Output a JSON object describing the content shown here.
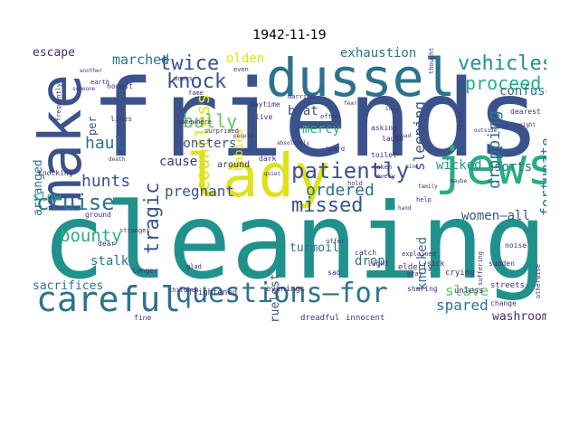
{
  "title": "1942-11-19",
  "palette": {
    "dark_purple": "#472d7b",
    "blue": "#3b528b",
    "slate": "#2c728e",
    "teal": "#21918c",
    "green_teal": "#28ae80",
    "green": "#5ec962",
    "yellow_green": "#addc30",
    "yellow": "#dde318"
  },
  "words": [
    {
      "text": "friends",
      "color": "#3b528b"
    },
    {
      "text": "cleaning",
      "color": "#21918c"
    },
    {
      "text": "lady",
      "color": "#dde318"
    },
    {
      "text": "make",
      "color": "#3b528b"
    },
    {
      "text": "dussel",
      "color": "#2c728e"
    },
    {
      "text": "jews",
      "color": "#28ae80"
    },
    {
      "text": "careful",
      "color": "#2c728e"
    },
    {
      "text": "questions—for",
      "color": "#2c728e"
    },
    {
      "text": "cruise",
      "color": "#2c728e"
    },
    {
      "text": "missed",
      "color": "#3b528b"
    },
    {
      "text": "patiently",
      "color": "#3b528b"
    },
    {
      "text": "knock",
      "color": "#3b528b"
    },
    {
      "text": "twice",
      "color": "#3b528b"
    },
    {
      "text": "vehicles",
      "color": "#21918c"
    },
    {
      "text": "proceed",
      "color": "#28ae80"
    },
    {
      "text": "countless",
      "color": "#dde318"
    },
    {
      "text": "bully",
      "color": "#5ec962"
    },
    {
      "text": "haul",
      "color": "#2c728e"
    },
    {
      "text": "hunts",
      "color": "#3b528b"
    },
    {
      "text": "bounty",
      "color": "#28ae80"
    },
    {
      "text": "tragic",
      "color": "#3b528b"
    },
    {
      "text": "pregnant",
      "color": "#3b528b"
    },
    {
      "text": "ordered",
      "color": "#2c728e"
    },
    {
      "text": "marched",
      "color": "#2c728e"
    },
    {
      "text": "escape",
      "color": "#472d7b"
    },
    {
      "text": "exhaustion",
      "color": "#2c728e"
    },
    {
      "text": "confused",
      "color": "#2c728e"
    },
    {
      "text": "fortunate",
      "color": "#2c728e"
    },
    {
      "text": "dropping",
      "color": "#2c728e"
    },
    {
      "text": "sleeping",
      "color": "#3b528b"
    },
    {
      "text": "wicked",
      "color": "#21918c"
    },
    {
      "text": "sorts",
      "color": "#2c728e"
    },
    {
      "text": "women—all",
      "color": "#3b528b"
    },
    {
      "text": "slave",
      "color": "#5ec962"
    },
    {
      "text": "spared",
      "color": "#2c728e"
    },
    {
      "text": "washroom",
      "color": "#472d7b"
    },
    {
      "text": "sacrifices",
      "color": "#2c728e"
    },
    {
      "text": "stalk",
      "color": "#2c728e"
    },
    {
      "text": "arranged",
      "color": "#2c728e"
    },
    {
      "text": "slow",
      "color": "#28ae80"
    },
    {
      "text": "monsters",
      "color": "#3b528b"
    },
    {
      "text": "cause",
      "color": "#472d7b"
    },
    {
      "text": "beat",
      "color": "#3b528b"
    },
    {
      "text": "mercy",
      "color": "#28ae80"
    },
    {
      "text": "cruelest",
      "color": "#3b528b"
    },
    {
      "text": "turmoil",
      "color": "#2c728e"
    },
    {
      "text": "drop",
      "color": "#2c728e"
    },
    {
      "text": "knocked",
      "color": "#2c728e"
    },
    {
      "text": "olden",
      "color": "#dde318"
    },
    {
      "text": "babies",
      "color": "#dde318"
    },
    {
      "text": "per",
      "color": "#3b528b"
    },
    {
      "text": "around",
      "color": "#472d7b"
    },
    {
      "text": "dreadful",
      "color": "#472d7b"
    },
    {
      "text": "innocent",
      "color": "#472d7b"
    },
    {
      "text": "military",
      "color": "#472d7b"
    },
    {
      "text": "walking",
      "color": "#472d7b"
    },
    {
      "text": "acquaintances",
      "color": "#472d7b"
    },
    {
      "text": "delighted",
      "color": "#472d7b"
    },
    {
      "text": "clutches",
      "color": "#472d7b"
    },
    {
      "text": "evenings",
      "color": "#472d7b"
    },
    {
      "text": "frightened",
      "color": "#472d7b"
    },
    {
      "text": "elderly",
      "color": "#472d7b"
    },
    {
      "text": "crying",
      "color": "#472d7b"
    },
    {
      "text": "streets",
      "color": "#472d7b"
    },
    {
      "text": "unless",
      "color": "#472d7b"
    },
    {
      "text": "change",
      "color": "#472d7b"
    },
    {
      "text": "sudden",
      "color": "#472d7b"
    },
    {
      "text": "noise",
      "color": "#472d7b"
    },
    {
      "text": "dearest",
      "color": "#472d7b"
    },
    {
      "text": "daytime",
      "color": "#472d7b"
    },
    {
      "text": "married",
      "color": "#472d7b"
    },
    {
      "text": "asking",
      "color": "#472d7b"
    },
    {
      "text": "often",
      "color": "#472d7b"
    },
    {
      "text": "heard",
      "color": "#472d7b"
    },
    {
      "text": "toilet",
      "color": "#472d7b"
    },
    {
      "text": "laugh",
      "color": "#472d7b"
    },
    {
      "text": "light",
      "color": "#472d7b"
    },
    {
      "text": "sick",
      "color": "#472d7b"
    },
    {
      "text": "sad",
      "color": "#472d7b"
    },
    {
      "text": "catch",
      "color": "#472d7b"
    },
    {
      "text": "knocking",
      "color": "#472d7b"
    },
    {
      "text": "ground",
      "color": "#472d7b"
    },
    {
      "text": "dear",
      "color": "#472d7b"
    },
    {
      "text": "fine",
      "color": "#472d7b"
    },
    {
      "text": "longer",
      "color": "#472d7b"
    },
    {
      "text": "sharing",
      "color": "#472d7b"
    },
    {
      "text": "gray",
      "color": "#472d7b"
    },
    {
      "text": "dark",
      "color": "#472d7b"
    },
    {
      "text": "live",
      "color": "#472d7b"
    },
    {
      "text": "lines",
      "color": "#472d7b"
    },
    {
      "text": "honest",
      "color": "#472d7b"
    },
    {
      "text": "earth",
      "color": "#472d7b"
    },
    {
      "text": "doors",
      "color": "#472d7b"
    },
    {
      "text": "fame",
      "color": "#472d7b"
    },
    {
      "text": "surprised",
      "color": "#472d7b"
    },
    {
      "text": "somewhere",
      "color": "#472d7b"
    },
    {
      "text": "absolutely",
      "color": "#472d7b"
    },
    {
      "text": "explained",
      "color": "#472d7b"
    },
    {
      "text": "taken",
      "color": "#472d7b"
    },
    {
      "text": "every",
      "color": "#472d7b"
    },
    {
      "text": "close",
      "color": "#472d7b"
    },
    {
      "text": "help",
      "color": "#472d7b"
    },
    {
      "text": "bread",
      "color": "#472d7b"
    },
    {
      "text": "fear",
      "color": "#472d7b"
    },
    {
      "text": "death",
      "color": "#472d7b"
    },
    {
      "text": "quiet",
      "color": "#472d7b"
    },
    {
      "text": "hold",
      "color": "#472d7b"
    },
    {
      "text": "even",
      "color": "#472d7b"
    },
    {
      "text": "thought",
      "color": "#472d7b"
    },
    {
      "text": "children",
      "color": "#472d7b"
    },
    {
      "text": "otherwise",
      "color": "#472d7b"
    },
    {
      "text": "suffering",
      "color": "#472d7b"
    },
    {
      "text": "people",
      "color": "#472d7b"
    },
    {
      "text": "outside",
      "color": "#472d7b"
    },
    {
      "text": "night",
      "color": "#472d7b"
    },
    {
      "text": "another",
      "color": "#472d7b"
    },
    {
      "text": "someone",
      "color": "#472d7b"
    },
    {
      "text": "frequently",
      "color": "#472d7b"
    },
    {
      "text": "stranger",
      "color": "#472d7b"
    },
    {
      "text": "glad",
      "color": "#472d7b"
    },
    {
      "text": "offer",
      "color": "#472d7b"
    },
    {
      "text": "family",
      "color": "#472d7b"
    },
    {
      "text": "maybe",
      "color": "#472d7b"
    },
    {
      "text": "idea",
      "color": "#472d7b"
    },
    {
      "text": "mine",
      "color": "#472d7b"
    },
    {
      "text": "hand",
      "color": "#472d7b"
    },
    {
      "text": "asked",
      "color": "#472d7b"
    }
  ]
}
